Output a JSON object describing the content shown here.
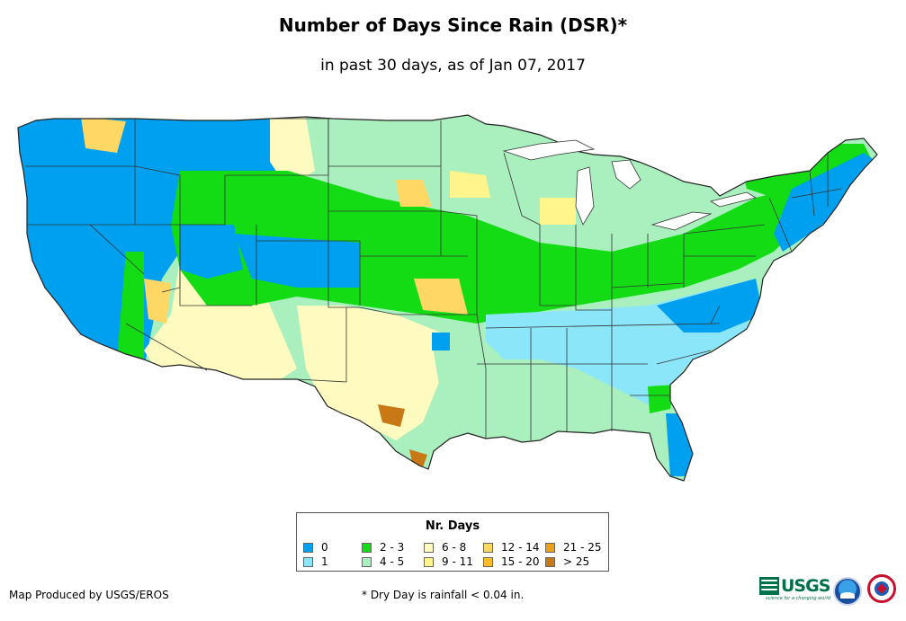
{
  "title": "Number of Days Since Rain (DSR)*",
  "subtitle": "in past 30 days, as of Jan 07, 2017",
  "legend": {
    "title": "Nr. Days",
    "items": [
      {
        "label": "0",
        "color": "#00a0f0"
      },
      {
        "label": "1",
        "color": "#8ce6fa"
      },
      {
        "label": "2 - 3",
        "color": "#14dc14"
      },
      {
        "label": "4 - 5",
        "color": "#aaf0be"
      },
      {
        "label": "6 - 8",
        "color": "#fffac0"
      },
      {
        "label": "9 - 11",
        "color": "#fff58c"
      },
      {
        "label": "12 - 14",
        "color": "#ffd764"
      },
      {
        "label": "15 - 20",
        "color": "#ffbe28"
      },
      {
        "label": "21 - 25",
        "color": "#f0a014"
      },
      {
        "label": "> 25",
        "color": "#c87814"
      }
    ]
  },
  "footer": {
    "credit": "Map Produced by USGS/EROS",
    "note": "* Dry Day is rainfall < 0.04 in."
  },
  "logos": {
    "usgs_text": "USGS",
    "usgs_tagline": "science for a changing world"
  }
}
